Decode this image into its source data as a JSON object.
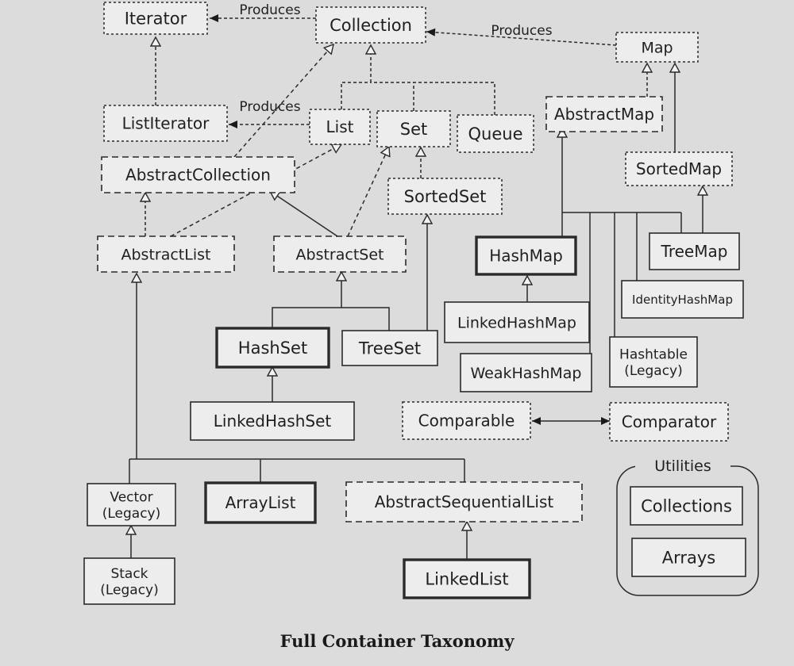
{
  "title": "Full Container Taxonomy",
  "produces_label": "Produces",
  "utilities_label": "Utilities",
  "nodes": [
    {
      "id": "iterator",
      "label": "Iterator",
      "style": "interface"
    },
    {
      "id": "collection",
      "label": "Collection",
      "style": "interface"
    },
    {
      "id": "map",
      "label": "Map",
      "style": "interface"
    },
    {
      "id": "listiterator",
      "label": "ListIterator",
      "style": "interface"
    },
    {
      "id": "list",
      "label": "List",
      "style": "interface"
    },
    {
      "id": "set",
      "label": "Set",
      "style": "interface"
    },
    {
      "id": "queue",
      "label": "Queue",
      "style": "interface"
    },
    {
      "id": "abstractmap",
      "label": "AbstractMap",
      "style": "abstract"
    },
    {
      "id": "sortedmap",
      "label": "SortedMap",
      "style": "interface"
    },
    {
      "id": "abstractcollection",
      "label": "AbstractCollection",
      "style": "abstract"
    },
    {
      "id": "sortedset",
      "label": "SortedSet",
      "style": "interface"
    },
    {
      "id": "abstractlist",
      "label": "AbstractList",
      "style": "abstract"
    },
    {
      "id": "abstractset",
      "label": "AbstractSet",
      "style": "abstract"
    },
    {
      "id": "hashmap",
      "label": "HashMap",
      "style": "bold"
    },
    {
      "id": "treemap",
      "label": "TreeMap",
      "style": "solid"
    },
    {
      "id": "identityhashmap",
      "label": "IdentityHashMap",
      "style": "solid"
    },
    {
      "id": "linkedhashmap",
      "label": "LinkedHashMap",
      "style": "solid"
    },
    {
      "id": "hashset",
      "label": "HashSet",
      "style": "bold"
    },
    {
      "id": "treeset",
      "label": "TreeSet",
      "style": "solid"
    },
    {
      "id": "hashtable",
      "label": "Hashtable\n(Legacy)",
      "style": "solid"
    },
    {
      "id": "weakhashmap",
      "label": "WeakHashMap",
      "style": "solid"
    },
    {
      "id": "linkedhashset",
      "label": "LinkedHashSet",
      "style": "solid"
    },
    {
      "id": "comparable",
      "label": "Comparable",
      "style": "interface"
    },
    {
      "id": "comparator",
      "label": "Comparator",
      "style": "interface"
    },
    {
      "id": "vector",
      "label": "Vector\n(Legacy)",
      "style": "solid"
    },
    {
      "id": "arraylist",
      "label": "ArrayList",
      "style": "bold"
    },
    {
      "id": "abstractsequentiallist",
      "label": "AbstractSequentialList",
      "style": "abstract"
    },
    {
      "id": "collections",
      "label": "Collections",
      "style": "solid"
    },
    {
      "id": "arrays",
      "label": "Arrays",
      "style": "solid"
    },
    {
      "id": "stack",
      "label": "Stack\n(Legacy)",
      "style": "solid"
    },
    {
      "id": "linkedlist",
      "label": "LinkedList",
      "style": "bold"
    }
  ],
  "edges": [
    {
      "from": "listiterator",
      "to": "iterator",
      "kind": "implements"
    },
    {
      "from": "list",
      "to": "collection",
      "kind": "implements"
    },
    {
      "from": "set",
      "to": "collection",
      "kind": "implements"
    },
    {
      "from": "queue",
      "to": "collection",
      "kind": "implements"
    },
    {
      "from": "abstractcollection",
      "to": "collection",
      "kind": "implements"
    },
    {
      "from": "abstractlist",
      "to": "abstractcollection",
      "kind": "extends"
    },
    {
      "from": "abstractlist",
      "to": "list",
      "kind": "implements"
    },
    {
      "from": "abstractset",
      "to": "abstractcollection",
      "kind": "extends"
    },
    {
      "from": "abstractset",
      "to": "set",
      "kind": "implements"
    },
    {
      "from": "sortedset",
      "to": "set",
      "kind": "extends"
    },
    {
      "from": "treeset",
      "to": "sortedset",
      "kind": "implements"
    },
    {
      "from": "hashset",
      "to": "abstractset",
      "kind": "extends"
    },
    {
      "from": "treeset",
      "to": "abstractset",
      "kind": "extends"
    },
    {
      "from": "linkedhashset",
      "to": "hashset",
      "kind": "extends"
    },
    {
      "from": "abstractmap",
      "to": "map",
      "kind": "implements"
    },
    {
      "from": "sortedmap",
      "to": "map",
      "kind": "extends"
    },
    {
      "from": "treemap",
      "to": "sortedmap",
      "kind": "implements"
    },
    {
      "from": "hashmap",
      "to": "abstractmap",
      "kind": "extends"
    },
    {
      "from": "treemap",
      "to": "abstractmap",
      "kind": "extends"
    },
    {
      "from": "identityhashmap",
      "to": "abstractmap",
      "kind": "extends"
    },
    {
      "from": "hashtable",
      "to": "abstractmap",
      "kind": "extends"
    },
    {
      "from": "weakhashmap",
      "to": "abstractmap",
      "kind": "extends"
    },
    {
      "from": "linkedhashmap",
      "to": "hashmap",
      "kind": "extends"
    },
    {
      "from": "vector",
      "to": "abstractlist",
      "kind": "extends"
    },
    {
      "from": "arraylist",
      "to": "abstractlist",
      "kind": "extends"
    },
    {
      "from": "abstractsequentiallist",
      "to": "abstractlist",
      "kind": "extends"
    },
    {
      "from": "stack",
      "to": "vector",
      "kind": "extends"
    },
    {
      "from": "linkedlist",
      "to": "abstractsequentiallist",
      "kind": "extends"
    },
    {
      "from": "collection",
      "to": "iterator",
      "kind": "produces"
    },
    {
      "from": "list",
      "to": "listiterator",
      "kind": "produces"
    },
    {
      "from": "map",
      "to": "collection",
      "kind": "produces"
    },
    {
      "from": "comparable",
      "to": "comparator",
      "kind": "bidirectional"
    }
  ]
}
